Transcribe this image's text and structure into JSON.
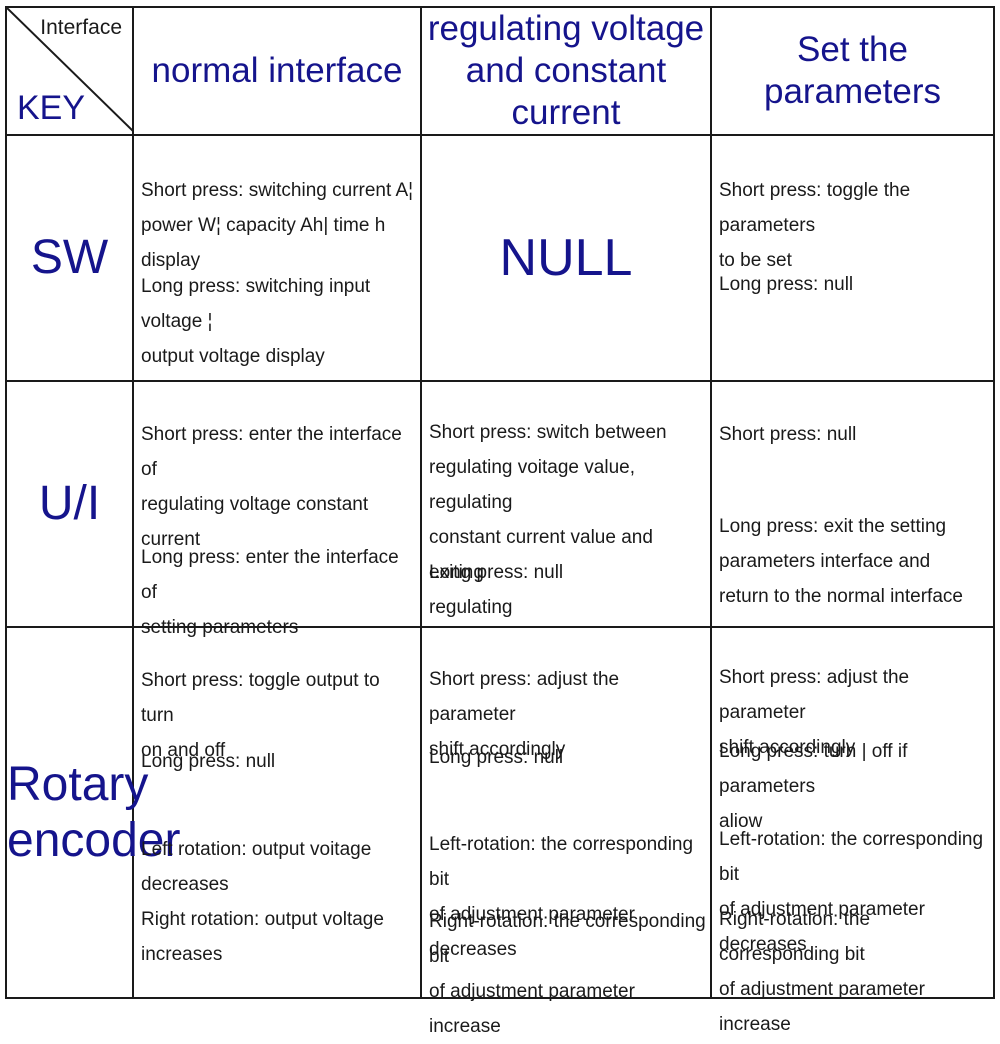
{
  "corner": {
    "interface_label": "Interface",
    "key_label": "KEY"
  },
  "columns": [
    {
      "title": "normal interface"
    },
    {
      "title_line1": "regulating voltage",
      "title_line2": "and constant current"
    },
    {
      "title": "Set the parameters"
    }
  ],
  "rows": {
    "sw": {
      "key": "SW",
      "normal_a": "Short press: switching current A¦\npower W¦ capacity Ah| time h display",
      "normal_b": "Long press: switching input voltage ¦\n output voltage display",
      "regulating": "NULL",
      "set_a": "Short press: toggle the parameters\nto be set",
      "set_b": "Long press: null"
    },
    "ui": {
      "key": "U/I",
      "normal_a": "Short press: enter the interface of\nregulating voltage constant current",
      "normal_b": "Long press: enter the interface of\nsetting parameters",
      "regulating_a": "Short press: switch between\nregulating voitage value, regulating\nconstant current value and exiting\nregulating",
      "regulating_b": "Long press: null",
      "set_a": "Short press: null",
      "set_b": "Long press: exit the setting\nparameters interface and\nreturn to the normal interface"
    },
    "rotary": {
      "key_line1": "Rotary",
      "key_line2": "encoder",
      "normal_a": "Short press: toggle output to turn\non and off",
      "normal_b": "Long press: null",
      "normal_c": "Left rotation: output voitage\ndecreases",
      "normal_d": "Right rotation: output voltage\nincreases",
      "regulating_a": "Short press: adjust the parameter\nshift accordingly",
      "regulating_b": "Long press: null",
      "regulating_c": "Left-rotation: the corresponding bit\nof adjustment parameter decreases",
      "regulating_d": "Right-rotation: the corresponding bit\nof adjustment parameter increase",
      "set_a": "Short press: adjust the parameter\nshift accordingly",
      "set_b": "Long press: turn | off if parameters\n aliow",
      "set_c": "Left-rotation: the corresponding bit\nof adjustment parameter decreases",
      "set_d": "Right-rotation: the corresponding bit\nof adjustment parameter increase"
    }
  }
}
